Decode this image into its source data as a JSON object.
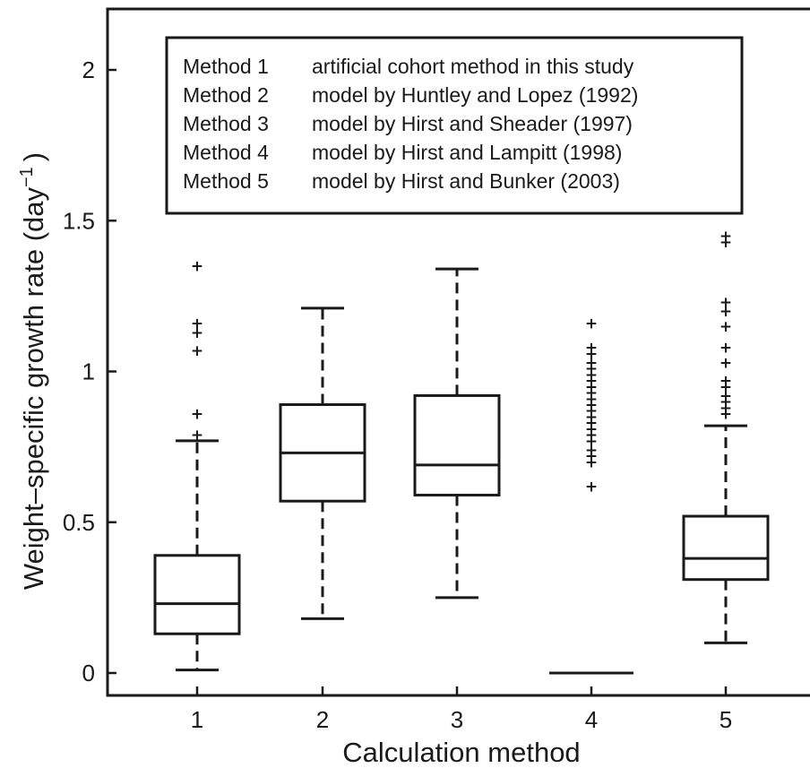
{
  "chart_data": {
    "type": "box",
    "xlabel": "Calculation method",
    "ylabel": "Weight–specific growth rate (day",
    "ylabel_superscript": "−1",
    "ylabel_close": ")",
    "ylim": [
      -0.08,
      2.2
    ],
    "yticks": [
      0,
      0.5,
      1,
      1.5,
      2
    ],
    "ytick_labels": [
      "0",
      "0.5",
      "1",
      "1.5",
      "2"
    ],
    "categories": [
      "1",
      "2",
      "3",
      "4",
      "5"
    ],
    "boxes": [
      {
        "category": "1",
        "q1": 0.13,
        "median": 0.23,
        "q3": 0.39,
        "whisker_low": 0.01,
        "whisker_high": 0.77,
        "outliers": [
          0.79,
          0.86,
          1.07,
          1.13,
          1.16,
          1.35
        ]
      },
      {
        "category": "2",
        "q1": 0.57,
        "median": 0.73,
        "q3": 0.89,
        "whisker_low": 0.18,
        "whisker_high": 1.21,
        "outliers": []
      },
      {
        "category": "3",
        "q1": 0.59,
        "median": 0.69,
        "q3": 0.92,
        "whisker_low": 0.25,
        "whisker_high": 1.34,
        "outliers": []
      },
      {
        "category": "4",
        "q1": 0,
        "median": 0,
        "q3": 0,
        "whisker_low": 0,
        "whisker_high": 0,
        "outliers": [
          0.62,
          0.7,
          0.72,
          0.74,
          0.77,
          0.79,
          0.81,
          0.83,
          0.85,
          0.87,
          0.89,
          0.91,
          0.93,
          0.95,
          0.97,
          0.99,
          1.01,
          1.03,
          1.06,
          1.08,
          1.16
        ]
      },
      {
        "category": "5",
        "q1": 0.31,
        "median": 0.38,
        "q3": 0.52,
        "whisker_low": 0.1,
        "whisker_high": 0.82,
        "outliers": [
          0.86,
          0.88,
          0.9,
          0.92,
          0.95,
          0.97,
          1.03,
          1.08,
          1.15,
          1.2,
          1.23,
          1.43,
          1.45
        ]
      }
    ],
    "legend": {
      "position": "top",
      "entries": [
        {
          "key": "Method 1",
          "text": "artificial cohort method in this study"
        },
        {
          "key": "Method 2",
          "text": "model by Huntley and Lopez (1992)"
        },
        {
          "key": "Method 3",
          "text": "model by Hirst and Sheader (1997)"
        },
        {
          "key": "Method 4",
          "text": "model by Hirst and Lampitt (1998)"
        },
        {
          "key": "Method 5",
          "text": "model by Hirst and Bunker (2003)"
        }
      ]
    },
    "grid": false
  }
}
